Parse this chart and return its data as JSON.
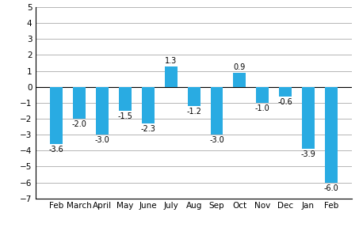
{
  "categories": [
    "Feb",
    "March",
    "April",
    "May",
    "June",
    "July",
    "Aug",
    "Sep",
    "Oct",
    "Nov",
    "Dec",
    "Jan",
    "Feb"
  ],
  "values": [
    -3.6,
    -2.0,
    -3.0,
    -1.5,
    -2.3,
    1.3,
    -1.2,
    -3.0,
    0.9,
    -1.0,
    -0.6,
    -3.9,
    -6.0
  ],
  "bar_color": "#29abe2",
  "ylim": [
    -7,
    5
  ],
  "yticks": [
    -7,
    -6,
    -5,
    -4,
    -3,
    -2,
    -1,
    0,
    1,
    2,
    3,
    4,
    5
  ],
  "background_color": "#ffffff",
  "grid_color": "#aaaaaa",
  "label_fontsize": 7.0,
  "tick_fontsize": 7.5,
  "bar_width": 0.55,
  "year_2012_idx": 0,
  "year_2013_idx": 12
}
